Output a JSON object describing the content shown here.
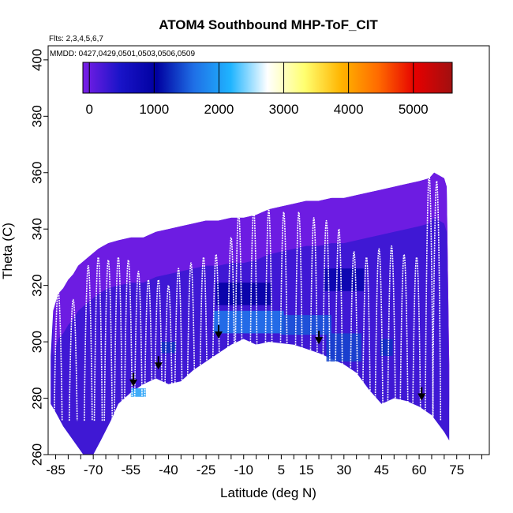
{
  "chart_data": {
    "type": "heatmap",
    "title": "ATOM4 Southbound MHP-ToF_CIT",
    "subtitle_flights": "Flts: 2,3,4,5,6,7",
    "subtitle_dates": "MMDD: 0427,0429,0501,0503,0506,0509",
    "xlabel": "Latitude (deg N)",
    "ylabel": "Theta (C)",
    "xlim": [
      -88,
      88
    ],
    "ylim": [
      260,
      405
    ],
    "x_ticks": [
      -85,
      -80,
      -75,
      -70,
      -65,
      -60,
      -55,
      -50,
      -45,
      -40,
      -35,
      -30,
      -25,
      -20,
      -15,
      -10,
      -5,
      0,
      5,
      10,
      15,
      20,
      25,
      30,
      35,
      40,
      45,
      50,
      55,
      60,
      65,
      70,
      75,
      80,
      85
    ],
    "x_tick_labels": [
      {
        "value": -85,
        "label": "-85"
      },
      {
        "value": -70,
        "label": "-70"
      },
      {
        "value": -55,
        "label": "-55"
      },
      {
        "value": -40,
        "label": "-40"
      },
      {
        "value": -25,
        "label": "-25"
      },
      {
        "value": -10,
        "label": "-10"
      },
      {
        "value": 5,
        "label": "5"
      },
      {
        "value": 15,
        "label": "15"
      },
      {
        "value": 30,
        "label": "30"
      },
      {
        "value": 45,
        "label": "45"
      },
      {
        "value": 60,
        "label": "60"
      },
      {
        "value": 75,
        "label": "75"
      }
    ],
    "y_ticks": [
      260,
      280,
      300,
      320,
      340,
      360,
      380,
      400
    ],
    "y_tick_labels": [
      "260",
      "280",
      "300",
      "320",
      "340",
      "360",
      "380",
      "400"
    ],
    "colorbar": {
      "range": [
        -100,
        5600
      ],
      "ticks": [
        0,
        1000,
        2000,
        3000,
        4000,
        5000
      ],
      "tick_labels": [
        "0",
        "1000",
        "2000",
        "3000",
        "4000",
        "5000"
      ],
      "colors": [
        "#7a1ee6",
        "#1a14c8",
        "#0000a0",
        "#1f6fe6",
        "#1fb4ff",
        "#ffffff",
        "#ffff70",
        "#ffb400",
        "#ff6a00",
        "#e60000",
        "#a01010"
      ]
    },
    "ceiling_boundary": [
      [
        -86,
        311
      ],
      [
        -84,
        317
      ],
      [
        -82,
        319
      ],
      [
        -80,
        322
      ],
      [
        -78,
        324
      ],
      [
        -76,
        327
      ],
      [
        -72,
        330
      ],
      [
        -68,
        333
      ],
      [
        -64,
        335
      ],
      [
        -60,
        336
      ],
      [
        -55,
        337
      ],
      [
        -50,
        337
      ],
      [
        -45,
        339
      ],
      [
        -40,
        340
      ],
      [
        -35,
        341
      ],
      [
        -30,
        342
      ],
      [
        -25,
        343
      ],
      [
        -20,
        343
      ],
      [
        -15,
        344
      ],
      [
        -10,
        344
      ],
      [
        -5,
        345
      ],
      [
        0,
        347
      ],
      [
        5,
        348
      ],
      [
        10,
        349
      ],
      [
        15,
        350
      ],
      [
        20,
        350
      ],
      [
        25,
        351
      ],
      [
        30,
        351
      ],
      [
        35,
        352
      ],
      [
        40,
        353
      ],
      [
        45,
        354
      ],
      [
        50,
        355
      ],
      [
        55,
        356
      ],
      [
        60,
        357
      ],
      [
        64,
        358
      ],
      [
        66,
        360
      ],
      [
        70,
        358
      ],
      [
        71,
        355
      ],
      [
        72,
        292
      ]
    ],
    "floor_boundary": [
      [
        72,
        265
      ],
      [
        70,
        268
      ],
      [
        65,
        274
      ],
      [
        60,
        277
      ],
      [
        55,
        279
      ],
      [
        50,
        280
      ],
      [
        45,
        278
      ],
      [
        40,
        283
      ],
      [
        35,
        289
      ],
      [
        30,
        292
      ],
      [
        25,
        294
      ],
      [
        20,
        296
      ],
      [
        10,
        299
      ],
      [
        0,
        300
      ],
      [
        -5,
        299
      ],
      [
        -10,
        301
      ],
      [
        -15,
        299
      ],
      [
        -20,
        296
      ],
      [
        -25,
        293
      ],
      [
        -30,
        290
      ],
      [
        -35,
        286
      ],
      [
        -40,
        285
      ],
      [
        -45,
        287
      ],
      [
        -50,
        285
      ],
      [
        -55,
        282
      ],
      [
        -60,
        278
      ],
      [
        -63,
        272
      ],
      [
        -67,
        265
      ],
      [
        -70,
        260
      ],
      [
        -74,
        260
      ],
      [
        -78,
        265
      ],
      [
        -82,
        270
      ],
      [
        -85,
        275
      ],
      [
        -87,
        278
      ],
      [
        -87,
        295
      ]
    ],
    "enhanced_regions": [
      {
        "lat": -8,
        "theta": 307,
        "w": 28,
        "h": 8,
        "value": 1700
      },
      {
        "lat": 15,
        "theta": 306,
        "w": 20,
        "h": 7,
        "value": 1500
      },
      {
        "lat": 30,
        "theta": 298,
        "w": 14,
        "h": 10,
        "value": 1400
      },
      {
        "lat": -52,
        "theta": 282,
        "w": 6,
        "h": 3,
        "value": 2000
      },
      {
        "lat": -40,
        "theta": 298,
        "w": 6,
        "h": 4,
        "value": 1300
      },
      {
        "lat": 47,
        "theta": 298,
        "w": 5,
        "h": 6,
        "value": 1300
      },
      {
        "lat": -10,
        "theta": 317,
        "w": 22,
        "h": 8,
        "value": 1000
      },
      {
        "lat": 30,
        "theta": 322,
        "w": 16,
        "h": 8,
        "value": 900
      }
    ],
    "arrows": [
      {
        "lat": -54,
        "theta": 285
      },
      {
        "lat": -44,
        "theta": 291
      },
      {
        "lat": -20,
        "theta": 302
      },
      {
        "lat": 20,
        "theta": 300
      },
      {
        "lat": 61,
        "theta": 280
      }
    ],
    "flight_track_tops": [
      {
        "lat": -84,
        "theta": 318
      },
      {
        "lat": -78,
        "theta": 315
      },
      {
        "lat": -72,
        "theta": 327
      },
      {
        "lat": -68,
        "theta": 330
      },
      {
        "lat": -64,
        "theta": 329
      },
      {
        "lat": -60,
        "theta": 330
      },
      {
        "lat": -56,
        "theta": 329
      },
      {
        "lat": -52,
        "theta": 325
      },
      {
        "lat": -48,
        "theta": 322
      },
      {
        "lat": -44,
        "theta": 322
      },
      {
        "lat": -40,
        "theta": 320
      },
      {
        "lat": -36,
        "theta": 326
      },
      {
        "lat": -31,
        "theta": 328
      },
      {
        "lat": -26,
        "theta": 330
      },
      {
        "lat": -21,
        "theta": 331
      },
      {
        "lat": -15,
        "theta": 337
      },
      {
        "lat": -12,
        "theta": 346
      },
      {
        "lat": -6,
        "theta": 347
      },
      {
        "lat": 0,
        "theta": 347
      },
      {
        "lat": 6,
        "theta": 346
      },
      {
        "lat": 12,
        "theta": 346
      },
      {
        "lat": 18,
        "theta": 344
      },
      {
        "lat": 23,
        "theta": 343
      },
      {
        "lat": 28,
        "theta": 340
      },
      {
        "lat": 34,
        "theta": 332
      },
      {
        "lat": 39,
        "theta": 330
      },
      {
        "lat": 44,
        "theta": 333
      },
      {
        "lat": 49,
        "theta": 334
      },
      {
        "lat": 54,
        "theta": 331
      },
      {
        "lat": 59,
        "theta": 330
      },
      {
        "lat": 64,
        "theta": 359
      },
      {
        "lat": 67,
        "theta": 357
      }
    ],
    "track_bottom_theta": 272
  }
}
